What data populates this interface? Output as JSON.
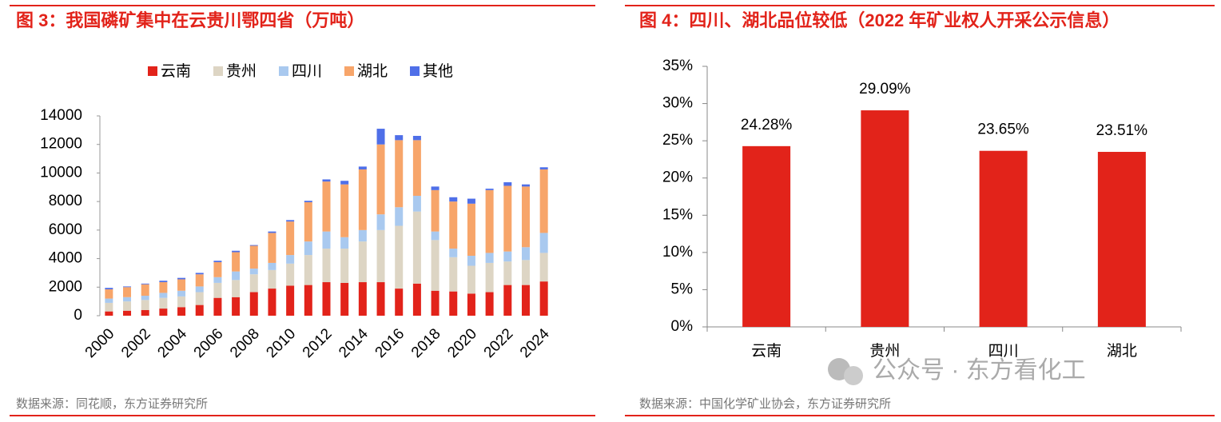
{
  "chart_data": [
    {
      "type": "stacked_bar",
      "title": "图 3：我国磷矿集中在云贵川鄂四省（万吨）",
      "categories": [
        "2000",
        null,
        "2002",
        null,
        "2004",
        null,
        "2006",
        null,
        "2008",
        null,
        "2010",
        null,
        "2012",
        null,
        "2014",
        null,
        "2016",
        null,
        "2018",
        null,
        "2020",
        null,
        "2022",
        null,
        "2024"
      ],
      "series": [
        {
          "name": "云南",
          "color": "#e2231a",
          "values": [
            300,
            350,
            400,
            500,
            600,
            750,
            1250,
            1300,
            1650,
            1900,
            2100,
            2150,
            2350,
            2300,
            2350,
            2350,
            1900,
            2250,
            1750,
            1700,
            1550,
            1650,
            2150,
            2150,
            2400
          ]
        },
        {
          "name": "贵州",
          "color": "#ddd5c4",
          "values": [
            600,
            650,
            700,
            750,
            750,
            900,
            1050,
            1200,
            1250,
            1300,
            1550,
            2100,
            2350,
            2400,
            2850,
            3650,
            4400,
            5050,
            3550,
            2400,
            1950,
            2050,
            1650,
            1750,
            2000
          ]
        },
        {
          "name": "四川",
          "color": "#a9c9ef",
          "values": [
            300,
            300,
            300,
            350,
            400,
            400,
            400,
            600,
            400,
            500,
            600,
            950,
            1200,
            800,
            800,
            1100,
            1300,
            1100,
            600,
            600,
            700,
            700,
            700,
            900,
            1400
          ]
        },
        {
          "name": "湖北",
          "color": "#f7a56a",
          "values": [
            650,
            700,
            800,
            750,
            800,
            850,
            1050,
            1350,
            1600,
            2100,
            2350,
            2750,
            3500,
            3700,
            4250,
            4900,
            4700,
            3900,
            2900,
            3300,
            3650,
            4400,
            4600,
            4250,
            4450
          ]
        },
        {
          "name": "其他",
          "color": "#4f6fe8",
          "values": [
            100,
            50,
            50,
            100,
            100,
            100,
            100,
            100,
            50,
            100,
            100,
            100,
            150,
            250,
            200,
            1100,
            350,
            300,
            250,
            300,
            350,
            100,
            250,
            150,
            150
          ]
        }
      ],
      "ylim": [
        0,
        14000
      ],
      "yticks": [
        0,
        2000,
        4000,
        6000,
        8000,
        10000,
        12000,
        14000
      ],
      "legend": "top",
      "source": "数据来源：同花顺，东方证券研究所"
    },
    {
      "type": "bar",
      "title": "图 4：四川、湖北品位较低（2022 年矿业权人开采公示信息）",
      "categories": [
        "云南",
        "贵州",
        "四川",
        "湖北"
      ],
      "values": [
        24.28,
        29.09,
        23.65,
        23.51
      ],
      "value_labels": [
        "24.28%",
        "29.09%",
        "23.65%",
        "23.51%"
      ],
      "color": "#e2231a",
      "ylim": [
        0,
        35
      ],
      "yticks": [
        {
          "value": 0,
          "label": "0%"
        },
        {
          "value": 5,
          "label": "5%"
        },
        {
          "value": 10,
          "label": "10%"
        },
        {
          "value": 15,
          "label": "15%"
        },
        {
          "value": 20,
          "label": "20%"
        },
        {
          "value": 25,
          "label": "25%"
        },
        {
          "value": 30,
          "label": "30%"
        },
        {
          "value": 35,
          "label": "35%"
        }
      ],
      "source": "数据来源：中国化学矿业协会，东方证券研究所"
    }
  ],
  "watermark": "公众号 · 东方看化工"
}
